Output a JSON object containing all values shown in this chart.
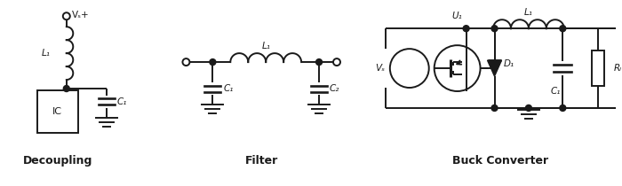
{
  "bg_color": "#ffffff",
  "line_color": "#1a1a1a",
  "line_width": 1.4,
  "labels": {
    "decoupling": "Decoupling",
    "filter": "Filter",
    "buck": "Buck Converter",
    "L1": "L₁",
    "C1": "C₁",
    "C2": "C₂",
    "U1": "U₁",
    "D1": "D₁",
    "RL": "Rₗ",
    "VS": "Vₛ",
    "VSplus": "Vₛ+"
  },
  "figsize": [
    7.0,
    2.1
  ],
  "dpi": 100
}
